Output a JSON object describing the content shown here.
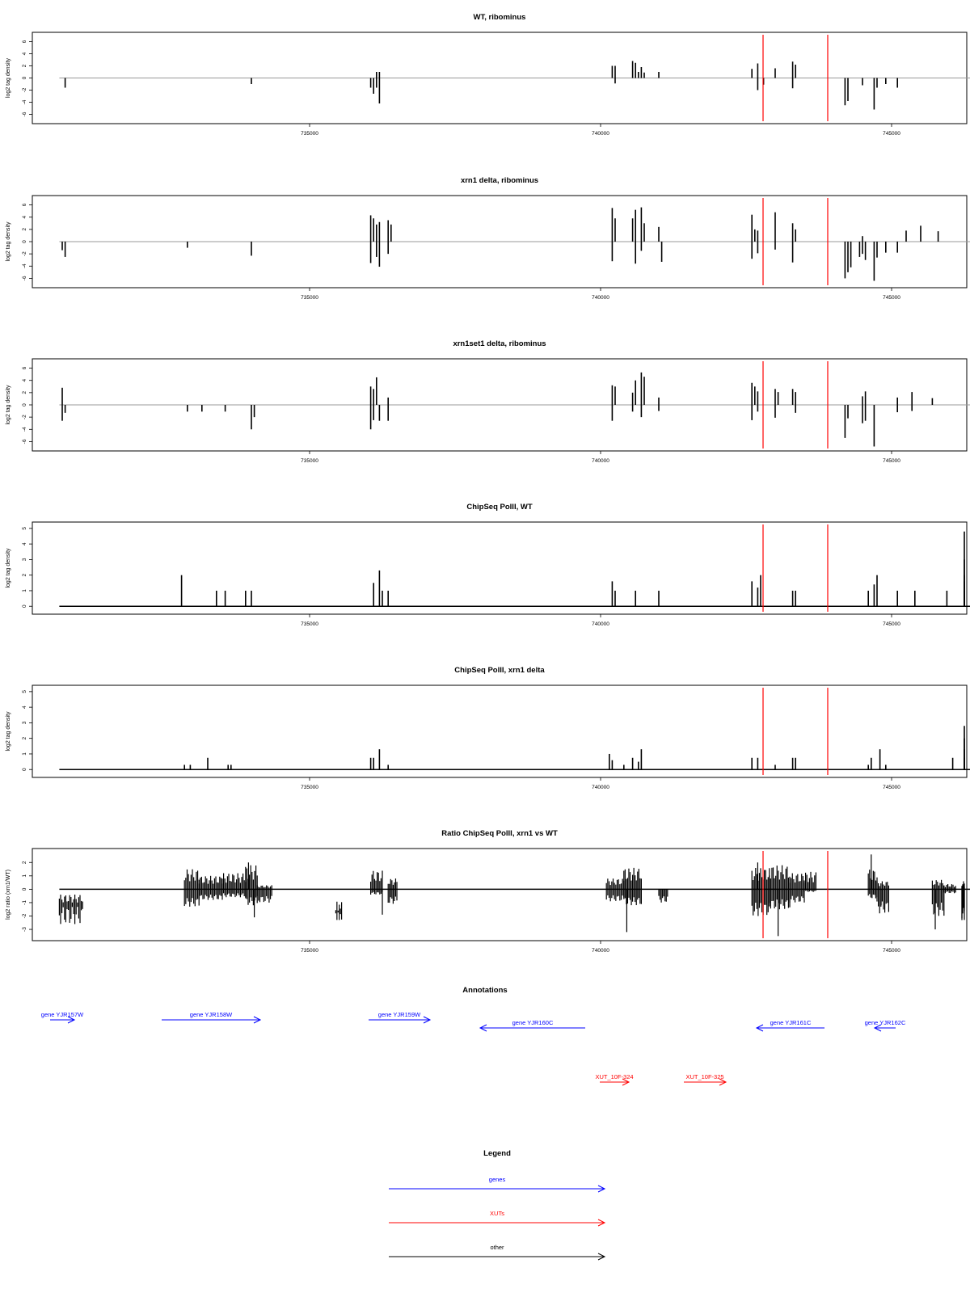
{
  "chart_data": [
    {
      "type": "bar",
      "title": "WT, ribominus",
      "ylabel": "log2 tag density",
      "ylim": [
        -7,
        7
      ],
      "yticks": [
        -6,
        -4,
        -2,
        0,
        2,
        4,
        6
      ],
      "xlim": [
        730100,
        745750
      ],
      "xticks": [
        "735000",
        "740000",
        "745000"
      ],
      "baseline": 0,
      "bars": [
        [
          730800,
          -1.6
        ],
        [
          734000,
          -1.0
        ],
        [
          736050,
          -1.6
        ],
        [
          736100,
          -2.6
        ],
        [
          736150,
          1.0
        ],
        [
          736150,
          -1.6
        ],
        [
          736200,
          -4.2
        ],
        [
          736200,
          1.0
        ],
        [
          740200,
          2.0
        ],
        [
          740250,
          2.0
        ],
        [
          740250,
          -0.9
        ],
        [
          740550,
          2.8
        ],
        [
          740600,
          2.5
        ],
        [
          740650,
          1.0
        ],
        [
          740700,
          1.8
        ],
        [
          740750,
          0.9
        ],
        [
          741000,
          1.0
        ],
        [
          742600,
          1.5
        ],
        [
          742700,
          2.4
        ],
        [
          742700,
          -2.0
        ],
        [
          742800,
          -1.1
        ],
        [
          743000,
          1.6
        ],
        [
          743300,
          2.7
        ],
        [
          743300,
          -1.7
        ],
        [
          743350,
          2.2
        ],
        [
          744200,
          -4.5
        ],
        [
          744250,
          -3.8
        ],
        [
          744500,
          -1.2
        ],
        [
          744700,
          -5.2
        ],
        [
          744750,
          -1.6
        ],
        [
          744900,
          -1.0
        ],
        [
          745100,
          -1.6
        ]
      ],
      "red_lines": [
        744570,
        745710
      ]
    },
    {
      "type": "bar",
      "title": "xrn1 delta, ribominus",
      "ylabel": "log2 tag density",
      "ylim": [
        -7,
        7
      ],
      "yticks": [
        -6,
        -4,
        -2,
        0,
        2,
        4,
        6
      ],
      "xlim": [
        730100,
        745750
      ],
      "xticks": [
        "735000",
        "740000",
        "745000"
      ],
      "baseline": 0,
      "bars": [
        [
          730750,
          -1.4
        ],
        [
          730800,
          -2.5
        ],
        [
          732900,
          -1.0
        ],
        [
          734000,
          -2.3
        ],
        [
          736350,
          3.5
        ],
        [
          736350,
          -2.0
        ],
        [
          736400,
          2.8
        ],
        [
          736050,
          4.3
        ],
        [
          736050,
          -3.5
        ],
        [
          736100,
          3.8
        ],
        [
          736150,
          2.8
        ],
        [
          736150,
          -2.5
        ],
        [
          736200,
          3.2
        ],
        [
          736200,
          -4.1
        ],
        [
          740200,
          5.5
        ],
        [
          740200,
          -3.2
        ],
        [
          740250,
          3.8
        ],
        [
          740550,
          3.8
        ],
        [
          740600,
          5.2
        ],
        [
          740600,
          -3.6
        ],
        [
          740700,
          5.6
        ],
        [
          740700,
          -1.5
        ],
        [
          740750,
          3.0
        ],
        [
          741000,
          2.4
        ],
        [
          741050,
          -3.3
        ],
        [
          742600,
          4.4
        ],
        [
          742600,
          -2.8
        ],
        [
          742650,
          2.0
        ],
        [
          742700,
          1.8
        ],
        [
          742700,
          -1.9
        ],
        [
          743000,
          4.8
        ],
        [
          743000,
          -1.3
        ],
        [
          743300,
          3.0
        ],
        [
          743300,
          -3.4
        ],
        [
          743350,
          2.0
        ],
        [
          744200,
          -6.0
        ],
        [
          744250,
          -5.0
        ],
        [
          744300,
          -4.2
        ],
        [
          744450,
          -2.5
        ],
        [
          744500,
          0.9
        ],
        [
          744500,
          -2.0
        ],
        [
          744550,
          -3.0
        ],
        [
          744700,
          -6.4
        ],
        [
          744750,
          -2.6
        ],
        [
          744900,
          -1.8
        ],
        [
          745100,
          -1.8
        ],
        [
          745250,
          1.8
        ],
        [
          745500,
          2.6
        ],
        [
          745800,
          1.7
        ]
      ],
      "red_lines": [
        744570,
        745710
      ]
    },
    {
      "type": "bar",
      "title": "xrn1set1 delta, ribominus",
      "ylabel": "log2 tag density",
      "ylim": [
        -7,
        7
      ],
      "yticks": [
        -6,
        -4,
        -2,
        0,
        2,
        4,
        6
      ],
      "xlim": [
        730100,
        745750
      ],
      "xticks": [
        "735000",
        "740000",
        "745000"
      ],
      "baseline": 0,
      "bars": [
        [
          730750,
          2.8
        ],
        [
          730750,
          -2.6
        ],
        [
          730800,
          -1.3
        ],
        [
          732900,
          -1.1
        ],
        [
          733150,
          -1.1
        ],
        [
          733550,
          -1.1
        ],
        [
          734000,
          -4.0
        ],
        [
          734050,
          -2.0
        ],
        [
          736350,
          1.2
        ],
        [
          736350,
          -2.6
        ],
        [
          736050,
          3.0
        ],
        [
          736050,
          -4.0
        ],
        [
          736100,
          2.6
        ],
        [
          736100,
          -2.5
        ],
        [
          736150,
          4.5
        ],
        [
          736200,
          -2.6
        ],
        [
          740200,
          3.2
        ],
        [
          740200,
          -2.6
        ],
        [
          740250,
          3.0
        ],
        [
          740550,
          2.0
        ],
        [
          740550,
          -1.1
        ],
        [
          740600,
          4.0
        ],
        [
          740700,
          5.3
        ],
        [
          740700,
          -2.0
        ],
        [
          740750,
          4.6
        ],
        [
          741000,
          1.2
        ],
        [
          741000,
          -1.0
        ],
        [
          742600,
          3.6
        ],
        [
          742600,
          -2.5
        ],
        [
          742650,
          3.0
        ],
        [
          742700,
          2.2
        ],
        [
          742700,
          -1.1
        ],
        [
          743000,
          2.6
        ],
        [
          743000,
          -2.1
        ],
        [
          743050,
          2.1
        ],
        [
          743300,
          2.6
        ],
        [
          743350,
          2.1
        ],
        [
          743350,
          -1.3
        ],
        [
          744200,
          -5.4
        ],
        [
          744250,
          -2.2
        ],
        [
          744500,
          1.4
        ],
        [
          744500,
          -3.0
        ],
        [
          744550,
          2.2
        ],
        [
          744550,
          -2.6
        ],
        [
          744700,
          -6.8
        ],
        [
          745100,
          1.2
        ],
        [
          745100,
          -1.2
        ],
        [
          745350,
          2.1
        ],
        [
          745350,
          -1.0
        ],
        [
          745700,
          1.1
        ]
      ],
      "red_lines": [
        744570,
        745710
      ]
    },
    {
      "type": "bar",
      "title": "ChipSeq PolII, WT",
      "ylabel": "log2 tag density",
      "ylim": [
        -0.3,
        5.2
      ],
      "yticks": [
        0,
        1,
        2,
        3,
        4,
        5
      ],
      "xlim": [
        730100,
        745750
      ],
      "xticks": [
        "735000",
        "740000",
        "745000"
      ],
      "baseline": 0,
      "bars": [
        [
          732800,
          2.0
        ],
        [
          733400,
          1.0
        ],
        [
          733550,
          1.0
        ],
        [
          733900,
          1.0
        ],
        [
          734000,
          1.0
        ],
        [
          736350,
          1.0
        ],
        [
          736100,
          1.5
        ],
        [
          736200,
          2.3
        ],
        [
          736250,
          1.0
        ],
        [
          740200,
          1.6
        ],
        [
          740250,
          1.0
        ],
        [
          740600,
          1.0
        ],
        [
          741000,
          1.0
        ],
        [
          742600,
          1.6
        ],
        [
          742700,
          1.2
        ],
        [
          742750,
          2.0
        ],
        [
          743300,
          1.0
        ],
        [
          743350,
          1.0
        ],
        [
          744600,
          1.0
        ],
        [
          744700,
          1.4
        ],
        [
          744750,
          2.0
        ],
        [
          745100,
          1.0
        ],
        [
          745400,
          1.0
        ],
        [
          745950,
          1.0
        ],
        [
          746250,
          1.0
        ],
        [
          746300,
          1.6
        ],
        [
          746350,
          1.0
        ],
        [
          746400,
          2.0
        ],
        [
          746450,
          3.0
        ],
        [
          746480,
          4.8
        ]
      ],
      "red_lines": [
        744570,
        745710
      ]
    },
    {
      "type": "bar",
      "title": "ChipSeq PolII, xrn1 delta",
      "ylabel": "log2 tag density",
      "ylim": [
        -0.3,
        5.2
      ],
      "yticks": [
        0,
        1,
        2,
        3,
        4,
        5
      ],
      "xlim": [
        730100,
        745750
      ],
      "xticks": [
        "735000",
        "740000",
        "745000"
      ],
      "baseline": 0,
      "bars": [
        [
          732850,
          0.3
        ],
        [
          732950,
          0.3
        ],
        [
          733250,
          0.75
        ],
        [
          733600,
          0.3
        ],
        [
          733650,
          0.3
        ],
        [
          736350,
          0.3
        ],
        [
          736050,
          0.75
        ],
        [
          736100,
          0.75
        ],
        [
          736200,
          1.3
        ],
        [
          740150,
          1.0
        ],
        [
          740200,
          0.6
        ],
        [
          740400,
          0.3
        ],
        [
          740550,
          0.75
        ],
        [
          740650,
          0.5
        ],
        [
          740700,
          1.3
        ],
        [
          742600,
          0.75
        ],
        [
          742700,
          0.75
        ],
        [
          743000,
          0.3
        ],
        [
          743300,
          0.75
        ],
        [
          743350,
          0.75
        ],
        [
          744600,
          0.3
        ],
        [
          744650,
          0.75
        ],
        [
          744800,
          1.3
        ],
        [
          744900,
          0.3
        ],
        [
          746050,
          0.75
        ],
        [
          746350,
          0.75
        ],
        [
          746400,
          1.3
        ],
        [
          746450,
          2.0
        ],
        [
          746500,
          2.8
        ]
      ],
      "red_lines": [
        744570,
        745710
      ]
    },
    {
      "type": "area",
      "title": "Ratio ChipSeq PolII, xrn1 vs WT",
      "ylabel": "log2 ratio (xrn1/WT)",
      "ylim": [
        -3.6,
        2.8
      ],
      "yticks": [
        -3,
        -2,
        -1,
        0,
        1,
        2
      ],
      "xlim": [
        730100,
        745750
      ],
      "xticks": [
        "735000",
        "740000",
        "745000"
      ],
      "baseline": 0,
      "segments": [
        [
          730700,
          731100,
          -2.6,
          -1.0
        ],
        [
          732850,
          733100,
          -1.3,
          1.5
        ],
        [
          733100,
          733500,
          -0.8,
          1.0
        ],
        [
          733500,
          733900,
          -0.6,
          1.2
        ],
        [
          733900,
          734100,
          -1.2,
          1.8
        ],
        [
          734100,
          734350,
          -1.0,
          0.3
        ],
        [
          735450,
          735550,
          -2.3,
          -2.3
        ],
        [
          736350,
          736500,
          -1.1,
          0.8
        ],
        [
          736050,
          736250,
          -0.4,
          1.4
        ],
        [
          740100,
          740400,
          -0.9,
          0.8
        ],
        [
          740400,
          740700,
          -1.2,
          1.6
        ],
        [
          741000,
          741150,
          -1.0,
          0.0
        ],
        [
          742600,
          742900,
          -2.0,
          1.6
        ],
        [
          742900,
          743250,
          -1.5,
          1.8
        ],
        [
          743250,
          743500,
          -1.0,
          1.2
        ],
        [
          743500,
          743700,
          -0.2,
          1.3
        ],
        [
          744600,
          744750,
          -0.7,
          1.5
        ],
        [
          744750,
          744950,
          -1.8,
          0.6
        ],
        [
          745700,
          745900,
          -2.0,
          0.7
        ],
        [
          745900,
          746100,
          -0.3,
          0.4
        ],
        [
          746300,
          746500,
          -2.2,
          0.6
        ],
        [
          746500,
          746600,
          -2.4,
          0.4
        ]
      ],
      "spikes": [
        [
          733950,
          2.0
        ],
        [
          734050,
          -2.1
        ],
        [
          742700,
          2.0
        ],
        [
          743050,
          -3.5
        ],
        [
          744650,
          2.6
        ],
        [
          740450,
          -3.2
        ],
        [
          745750,
          -3.0
        ],
        [
          736250,
          -1.9
        ],
        [
          744820,
          -1.2
        ]
      ],
      "red_lines": [
        744570,
        745710
      ]
    }
  ],
  "annotations": {
    "title": "Annotations",
    "genes": [
      {
        "label": "gene YJR157W",
        "start": 730900,
        "end": 731200,
        "dir": "right"
      },
      {
        "label": "gene YJR158W",
        "start": 732800,
        "end": 734450,
        "dir": "right"
      },
      {
        "label": "gene YJR159W",
        "start": 736600,
        "end": 737650,
        "dir": "right"
      },
      {
        "label": "gene YJR160C",
        "start": 738000,
        "end": 739800,
        "dir": "left"
      },
      {
        "label": "gene YJR161C",
        "start": 742800,
        "end": 744000,
        "dir": "left"
      },
      {
        "label": "gene YJR162C",
        "start": 745400,
        "end": 745750,
        "dir": "left"
      }
    ],
    "xuts": [
      {
        "label": "XUT_10F-324",
        "start": 740100,
        "end": 740550,
        "dir": "right"
      },
      {
        "label": "XUT_10F-325",
        "start": 741600,
        "end": 742300,
        "dir": "right"
      }
    ]
  },
  "legend": {
    "title": "Legend",
    "items": [
      {
        "label": "genes",
        "color": "#0000ff"
      },
      {
        "label": "XUTs",
        "color": "#ff0000"
      },
      {
        "label": "other",
        "color": "#000000"
      }
    ]
  },
  "colors": {
    "gene": "#0000ff",
    "xut": "#ff0000",
    "bar": "#000000",
    "marker": "#ff0000",
    "baseline": "#999999"
  }
}
